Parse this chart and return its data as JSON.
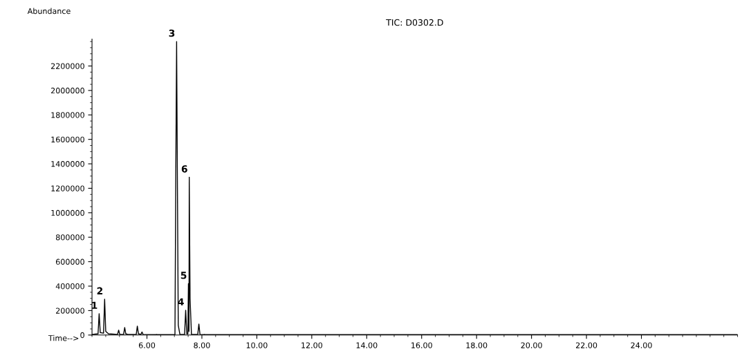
{
  "chart_data": {
    "type": "line",
    "title": "TIC: D0302.D",
    "xlabel": "Time-->",
    "ylabel": "Abundance",
    "x": [
      4.0,
      4.22,
      4.26,
      4.3,
      4.42,
      4.46,
      4.5,
      4.6,
      4.93,
      4.97,
      5.01,
      5.15,
      5.19,
      5.23,
      5.3,
      5.61,
      5.65,
      5.69,
      5.78,
      5.82,
      5.86,
      6.33,
      6.35,
      6.37,
      7.02,
      7.05,
      7.08,
      7.11,
      7.14,
      7.2,
      7.37,
      7.41,
      7.45,
      7.49,
      7.51,
      7.53,
      7.54,
      7.57,
      7.62,
      7.85,
      7.89,
      7.93,
      8.07,
      8.09,
      8.11,
      27.5
    ],
    "series": [
      {
        "color": "#000000",
        "values": [
          5000,
          10000,
          175000,
          20000,
          15000,
          293000,
          30000,
          10000,
          5000,
          40000,
          5000,
          5000,
          62000,
          10000,
          5000,
          5000,
          73000,
          10000,
          5000,
          25000,
          5000,
          3000,
          5000,
          3000,
          3000,
          1300000,
          2400000,
          1200000,
          80000,
          5000,
          5000,
          203000,
          10000,
          10000,
          420000,
          30000,
          1290000,
          300000,
          5000,
          5000,
          90000,
          5000,
          3000,
          5000,
          3000,
          3000
        ]
      }
    ],
    "annotations": [
      {
        "text": "1",
        "x": 4.26,
        "y": 175000
      },
      {
        "text": "2",
        "x": 4.46,
        "y": 293000
      },
      {
        "text": "3",
        "x": 7.08,
        "y": 2400000
      },
      {
        "text": "4",
        "x": 7.41,
        "y": 203000
      },
      {
        "text": "5",
        "x": 7.51,
        "y": 420000
      },
      {
        "text": "6",
        "x": 7.54,
        "y": 1290000
      }
    ],
    "xlim": [
      4.0,
      27.5
    ],
    "ylim": [
      0,
      2420000
    ],
    "xticks": [
      {
        "value": 6,
        "label": "6.00"
      },
      {
        "value": 8,
        "label": "8.00"
      },
      {
        "value": 10,
        "label": "10.00"
      },
      {
        "value": 12,
        "label": "12.00"
      },
      {
        "value": 14,
        "label": "14.00"
      },
      {
        "value": 16,
        "label": "16.00"
      },
      {
        "value": 18,
        "label": "18.00"
      },
      {
        "value": 20,
        "label": "20.00"
      },
      {
        "value": 22,
        "label": "22.00"
      },
      {
        "value": 24,
        "label": "24.00"
      }
    ],
    "yticks": [
      0,
      200000,
      400000,
      600000,
      800000,
      1000000,
      1200000,
      1400000,
      1600000,
      1800000,
      2000000,
      2200000
    ],
    "grid": false,
    "legend": false
  }
}
